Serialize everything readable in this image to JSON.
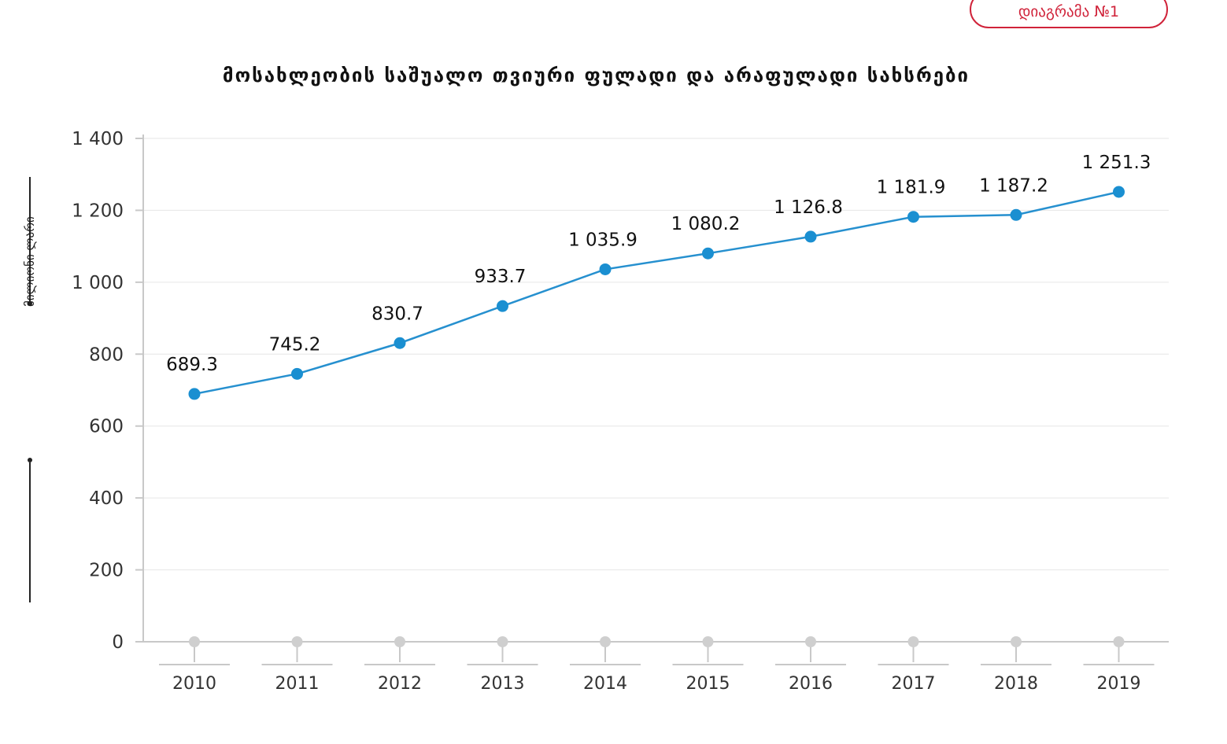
{
  "badge": {
    "label": "დიაგრამა №1"
  },
  "chart_data": {
    "type": "line",
    "title": "მოსახლეობის საშუალო თვიური ფულადი და არაფულადი სახსრები",
    "ylabel": "მილიონი ლარი",
    "xlabel": "",
    "x": [
      "2010",
      "2011",
      "2012",
      "2013",
      "2014",
      "2015",
      "2016",
      "2017",
      "2018",
      "2019"
    ],
    "series": [
      {
        "values": [
          689.3,
          745.2,
          830.7,
          933.7,
          1035.9,
          1080.2,
          1126.8,
          1181.9,
          1187.2,
          1251.3
        ]
      }
    ],
    "data_labels": [
      "689.3",
      "745.2",
      "830.7",
      "933.7",
      "1 035.9",
      "1 080.2",
      "1 126.8",
      "1 181.9",
      "1 187.2",
      "1 251.3"
    ],
    "yticks": [
      0,
      200,
      400,
      600,
      800,
      1000,
      1200,
      1400
    ],
    "ytick_labels": [
      "0",
      "200",
      "400",
      "600",
      "800",
      "1 000",
      "1 200",
      "1 400"
    ],
    "ylim": [
      0,
      1400
    ],
    "grid": true,
    "colors": {
      "line": "#2690cf",
      "point": "#1a8fd1",
      "grid": "#e6e6e6",
      "axis": "#c8c8c8",
      "baseline_dot": "#cfcfcf"
    }
  }
}
